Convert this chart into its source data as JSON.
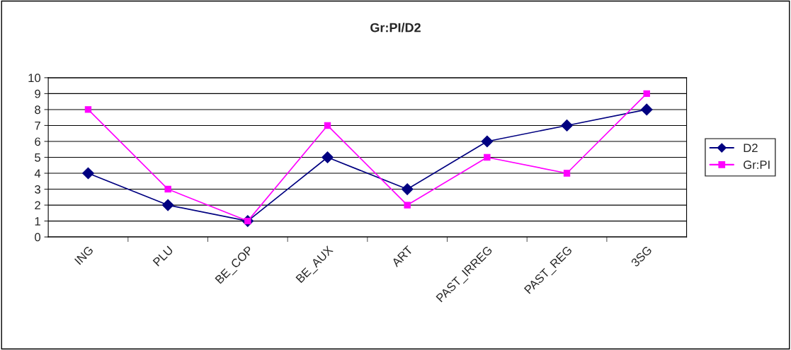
{
  "chart_data": {
    "type": "line",
    "title": "Gr:PI/D2",
    "categories": [
      "ING",
      "PLU",
      "BE_COP",
      "BE_AUX",
      "ART",
      "PAST_IRREG",
      "PAST_REG",
      "3SG"
    ],
    "series": [
      {
        "name": "D2",
        "color": "#000080",
        "marker": "diamond",
        "values": [
          4,
          2,
          1,
          5,
          3,
          6,
          7,
          8
        ]
      },
      {
        "name": "Gr:PI",
        "color": "#ff00ff",
        "marker": "square",
        "values": [
          8,
          3,
          1,
          7,
          2,
          5,
          4,
          9
        ]
      }
    ],
    "ylim": [
      0,
      10
    ],
    "yticks": [
      0,
      1,
      2,
      3,
      4,
      5,
      6,
      7,
      8,
      9,
      10
    ],
    "grid": "y",
    "legend": "right",
    "line_style": "solid"
  }
}
